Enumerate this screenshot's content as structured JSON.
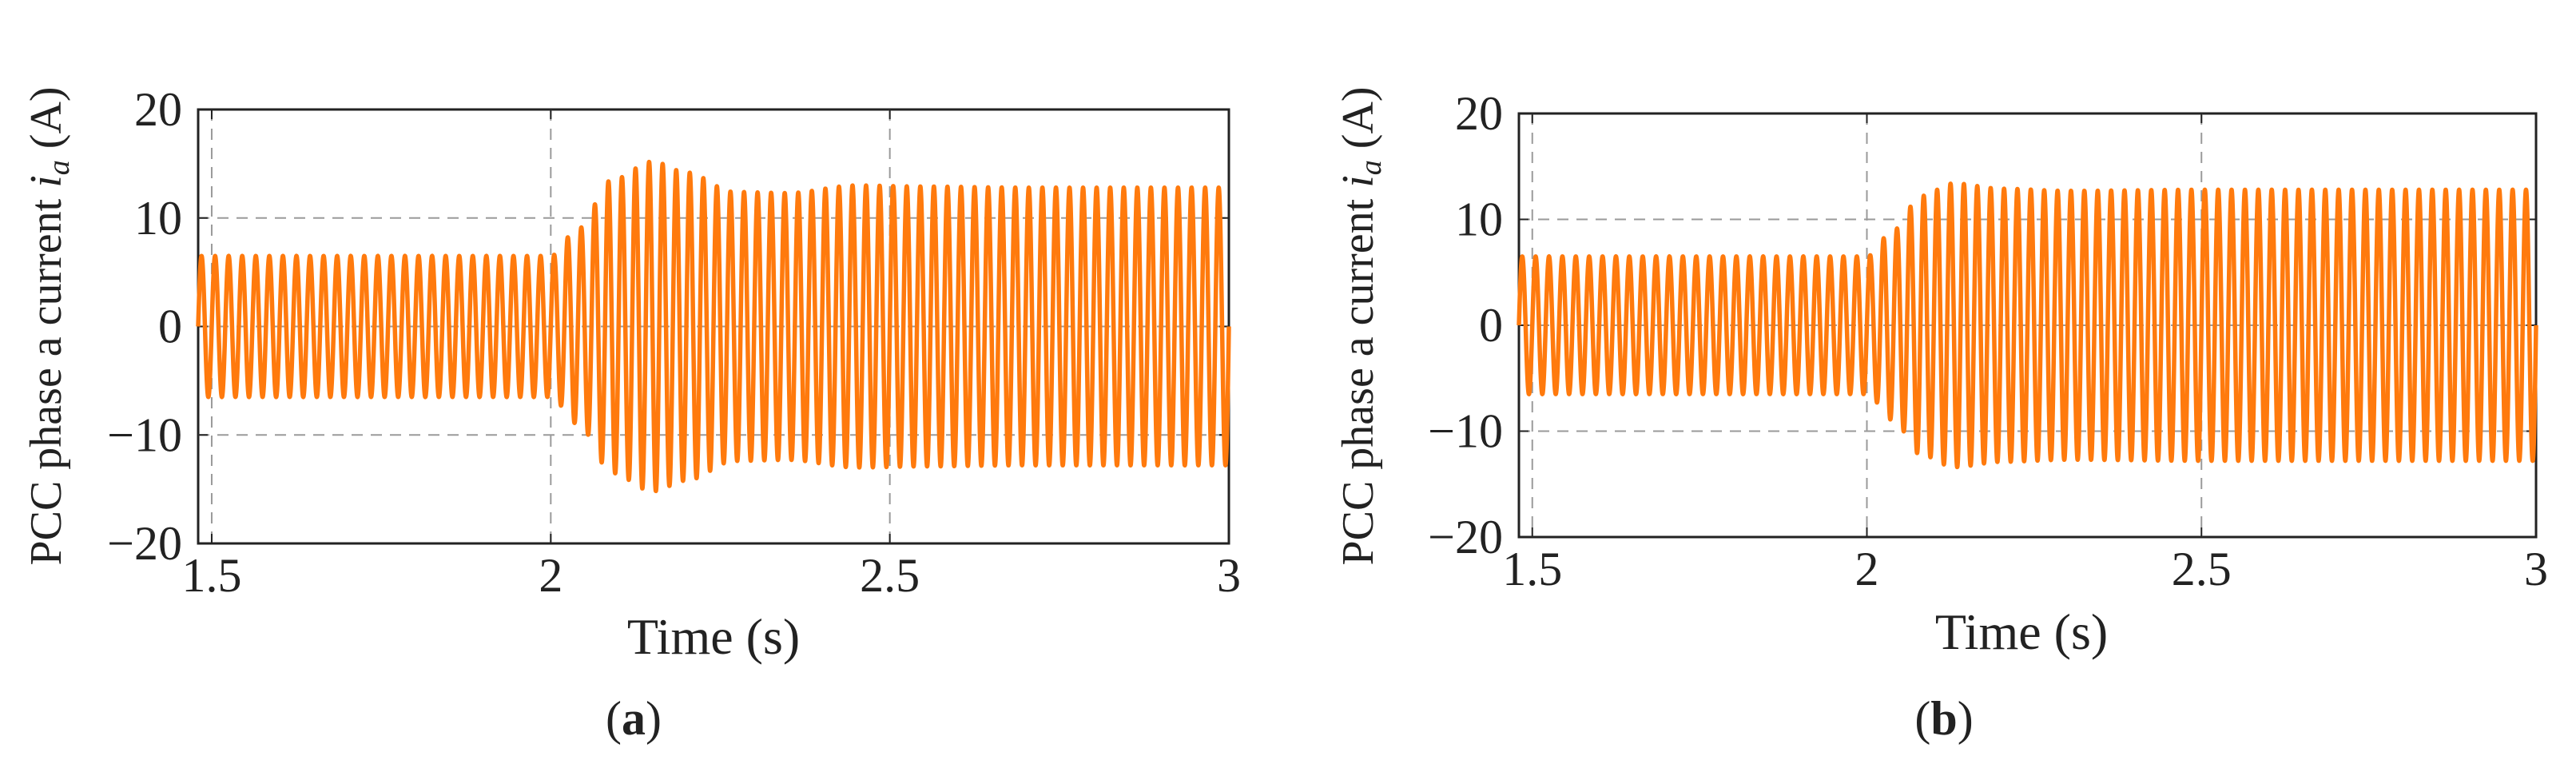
{
  "colors": {
    "trace": "#ff7a0d",
    "grid": "#9a9a9a",
    "axis": "#222222"
  },
  "chart_data": [
    {
      "type": "line",
      "caption": {
        "open": "(",
        "letter": "a",
        "close": ")"
      },
      "xlabel": "Time (s)",
      "ylabel": {
        "prefix": "PCC phase a current ",
        "var": "i",
        "sub": "a",
        "suffix": " (A)"
      },
      "xlim": [
        1.48,
        3.0
      ],
      "ylim": [
        -20,
        20
      ],
      "xticks": [
        1.5,
        2,
        2.5,
        3
      ],
      "xtick_labels": [
        "1.5",
        "2",
        "2.5",
        "3"
      ],
      "yticks": [
        -20,
        -10,
        0,
        10,
        20
      ],
      "ytick_labels": [
        "−20",
        "−10",
        "0",
        "10",
        "20"
      ],
      "grid": true,
      "frequency_hz": 50,
      "series": [
        {
          "amplitude_envelope": [
            [
              1.48,
              6.5
            ],
            [
              2.0,
              6.5
            ],
            [
              2.04,
              9
            ],
            [
              2.09,
              13.5
            ],
            [
              2.15,
              15.2
            ],
            [
              2.2,
              14.2
            ],
            [
              2.27,
              12.4
            ],
            [
              2.35,
              12.3
            ],
            [
              2.45,
              13.0
            ],
            [
              2.55,
              12.9
            ],
            [
              2.7,
              12.8
            ],
            [
              3.0,
              12.8
            ]
          ]
        }
      ]
    },
    {
      "type": "line",
      "caption": {
        "open": "(",
        "letter": "b",
        "close": ")"
      },
      "xlabel": "Time (s)",
      "ylabel": {
        "prefix": "PCC phase a current ",
        "var": "i",
        "sub": "a",
        "suffix": " (A)"
      },
      "xlim": [
        1.48,
        3.0
      ],
      "ylim": [
        -20,
        20
      ],
      "xticks": [
        1.5,
        2,
        2.5,
        3
      ],
      "xtick_labels": [
        "1.5",
        "2",
        "2.5",
        "3"
      ],
      "yticks": [
        -20,
        -10,
        0,
        10,
        20
      ],
      "ytick_labels": [
        "−20",
        "−10",
        "0",
        "10",
        "20"
      ],
      "grid": true,
      "frequency_hz": 50,
      "series": [
        {
          "amplitude_envelope": [
            [
              1.48,
              6.5
            ],
            [
              2.0,
              6.5
            ],
            [
              2.04,
              9
            ],
            [
              2.08,
              12.2
            ],
            [
              2.13,
              13.4
            ],
            [
              2.2,
              12.9
            ],
            [
              2.3,
              12.7
            ],
            [
              2.5,
              12.8
            ],
            [
              3.0,
              12.8
            ]
          ]
        }
      ]
    }
  ]
}
